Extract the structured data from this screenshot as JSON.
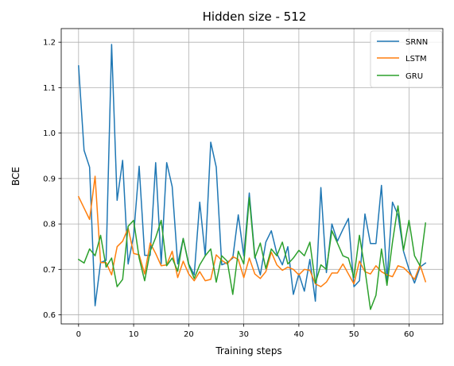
{
  "chart_data": {
    "type": "line",
    "title": "Hidden size - 512",
    "xlabel": "Training steps",
    "ylabel": "BCE",
    "xlim": [
      -3.15,
      66.15
    ],
    "ylim": [
      0.58,
      1.23
    ],
    "xticks": [
      0,
      10,
      20,
      30,
      40,
      50,
      60
    ],
    "yticks": [
      0.6,
      0.7,
      0.8,
      0.9,
      1.0,
      1.1,
      1.2
    ],
    "ytick_labels": [
      "0.6",
      "0.7",
      "0.8",
      "0.9",
      "1.0",
      "1.1",
      "1.2"
    ],
    "grid": true,
    "legend_position": "top-right",
    "series": [
      {
        "name": "SRNN",
        "color": "#1f77b4",
        "values": [
          1.148,
          0.962,
          0.925,
          0.62,
          0.715,
          0.72,
          1.195,
          0.852,
          0.94,
          0.712,
          0.775,
          0.927,
          0.731,
          0.731,
          0.935,
          0.712,
          0.935,
          0.882,
          0.712,
          0.768,
          0.712,
          0.688,
          0.848,
          0.73,
          0.98,
          0.925,
          0.71,
          0.715,
          0.725,
          0.82,
          0.73,
          0.868,
          0.73,
          0.688,
          0.76,
          0.785,
          0.735,
          0.71,
          0.75,
          0.645,
          0.69,
          0.652,
          0.722,
          0.63,
          0.88,
          0.693,
          0.8,
          0.762,
          0.788,
          0.812,
          0.662,
          0.675,
          0.822,
          0.757,
          0.757,
          0.885,
          0.676,
          0.848,
          0.82,
          0.74,
          0.7,
          0.67,
          0.705,
          0.714
        ]
      },
      {
        "name": "LSTM",
        "color": "#ff7f0e",
        "values": [
          0.86,
          0.835,
          0.81,
          0.905,
          0.715,
          0.715,
          0.688,
          0.75,
          0.762,
          0.791,
          0.735,
          0.732,
          0.69,
          0.758,
          0.735,
          0.708,
          0.71,
          0.74,
          0.682,
          0.718,
          0.69,
          0.675,
          0.695,
          0.675,
          0.678,
          0.732,
          0.72,
          0.712,
          0.728,
          0.722,
          0.682,
          0.725,
          0.69,
          0.68,
          0.695,
          0.738,
          0.71,
          0.698,
          0.705,
          0.7,
          0.688,
          0.7,
          0.698,
          0.668,
          0.662,
          0.672,
          0.692,
          0.692,
          0.712,
          0.69,
          0.668,
          0.718,
          0.695,
          0.69,
          0.708,
          0.695,
          0.688,
          0.684,
          0.708,
          0.704,
          0.692,
          0.678,
          0.71,
          0.673
        ]
      },
      {
        "name": "GRU",
        "color": "#2ca02c",
        "values": [
          0.722,
          0.714,
          0.745,
          0.73,
          0.775,
          0.705,
          0.725,
          0.662,
          0.678,
          0.795,
          0.808,
          0.725,
          0.675,
          0.74,
          0.77,
          0.808,
          0.708,
          0.725,
          0.696,
          0.768,
          0.71,
          0.68,
          0.71,
          0.73,
          0.745,
          0.672,
          0.73,
          0.718,
          0.645,
          0.74,
          0.712,
          0.858,
          0.725,
          0.758,
          0.702,
          0.745,
          0.73,
          0.76,
          0.712,
          0.725,
          0.742,
          0.73,
          0.76,
          0.67,
          0.71,
          0.7,
          0.785,
          0.758,
          0.73,
          0.725,
          0.682,
          0.775,
          0.7,
          0.612,
          0.643,
          0.745,
          0.665,
          0.76,
          0.84,
          0.742,
          0.808,
          0.73,
          0.708,
          0.802
        ]
      }
    ]
  }
}
